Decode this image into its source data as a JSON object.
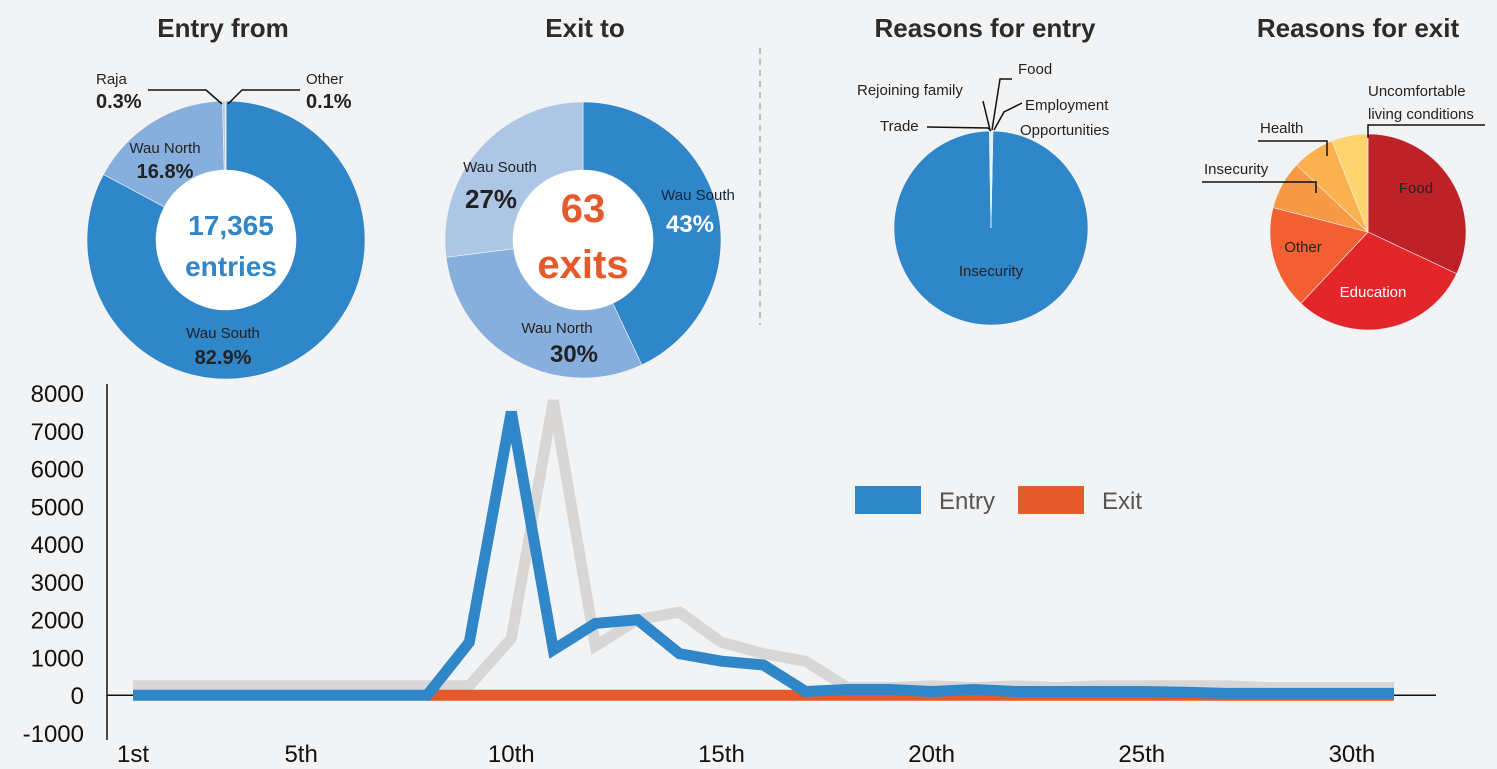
{
  "chart_data": [
    {
      "type": "pie",
      "variant": "donut",
      "title": "Entry from",
      "center_value": "17,365",
      "center_label": "entries",
      "slices": [
        {
          "label": "Wau South",
          "value": 82.9,
          "display": "82.9%",
          "color": "#2f86c9"
        },
        {
          "label": "Wau North",
          "value": 16.8,
          "display": "16.8%",
          "color": "#86afdd"
        },
        {
          "label": "Raja",
          "value": 0.3,
          "display": "0.3%",
          "color": "#b3c9e6"
        },
        {
          "label": "Other",
          "value": 0.1,
          "display": "0.1%",
          "color": "#d8e2ef"
        }
      ]
    },
    {
      "type": "pie",
      "variant": "donut",
      "title": "Exit to",
      "center_value": "63",
      "center_label": "exits",
      "center_color": "#e55a2b",
      "slices": [
        {
          "label": "Wau South",
          "value": 43,
          "display": "43%",
          "color": "#2f86c9"
        },
        {
          "label": "Wau North",
          "value": 30,
          "display": "30%",
          "color": "#86afdd"
        },
        {
          "label": "Wau South",
          "value": 27,
          "display": "27%",
          "color": "#aec6e5"
        }
      ]
    },
    {
      "type": "pie",
      "title": "Reasons for entry",
      "slices": [
        {
          "label": "Insecurity",
          "value": 99.4,
          "color": "#2f86c9"
        },
        {
          "label": "Rejoining family",
          "value": 0.15,
          "color": "#86afdd"
        },
        {
          "label": "Food",
          "value": 0.15,
          "color": "#a9c3e4"
        },
        {
          "label": "Employment Opportunities",
          "value": 0.15,
          "color": "#c5d6ec"
        },
        {
          "label": "Trade",
          "value": 0.15,
          "color": "#dde7f3"
        }
      ]
    },
    {
      "type": "pie",
      "title": "Reasons for exit",
      "slices": [
        {
          "label": "Food",
          "value": 32,
          "color": "#be2229"
        },
        {
          "label": "Education",
          "value": 30,
          "color": "#e3262a"
        },
        {
          "label": "Other",
          "value": 17,
          "color": "#f15f32"
        },
        {
          "label": "Insecurity",
          "value": 8,
          "color": "#f79a45"
        },
        {
          "label": "Health",
          "value": 7,
          "color": "#fbb24e"
        },
        {
          "label": "Uncomfortable living conditions",
          "value": 6,
          "color": "#fdd46e"
        }
      ]
    },
    {
      "type": "line",
      "xlabel": "",
      "ylabel": "",
      "x": [
        1,
        2,
        3,
        4,
        5,
        6,
        7,
        8,
        9,
        10,
        11,
        12,
        13,
        14,
        15,
        16,
        17,
        18,
        19,
        20,
        21,
        22,
        23,
        24,
        25,
        26,
        27,
        28,
        29,
        30,
        31
      ],
      "x_ticks": [
        {
          "x": 1,
          "label": "1st"
        },
        {
          "x": 5,
          "label": "5th"
        },
        {
          "x": 10,
          "label": "10th"
        },
        {
          "x": 15,
          "label": "15th"
        },
        {
          "x": 20,
          "label": "20th"
        },
        {
          "x": 25,
          "label": "25th"
        },
        {
          "x": 30,
          "label": "30th"
        }
      ],
      "y_ticks": [
        -1000,
        0,
        1000,
        2000,
        3000,
        4000,
        5000,
        6000,
        7000,
        8000
      ],
      "ylim": [
        -1000,
        8000
      ],
      "xlim": [
        1,
        32
      ],
      "legend_position": "center-right",
      "series": [
        {
          "name": "Entry",
          "color": "#2f86c9",
          "values": [
            0,
            0,
            0,
            0,
            0,
            0,
            0,
            0,
            1400,
            7500,
            1200,
            1900,
            2000,
            1100,
            900,
            800,
            100,
            150,
            150,
            100,
            150,
            100,
            100,
            100,
            100,
            80,
            50,
            50,
            50,
            50,
            50
          ]
        },
        {
          "name": "Exit",
          "color": "#e55a2b",
          "values": [
            0,
            0,
            0,
            0,
            0,
            0,
            0,
            0,
            0,
            0,
            0,
            0,
            0,
            0,
            0,
            0,
            0,
            0,
            0,
            0,
            0,
            0,
            0,
            0,
            0,
            0,
            0,
            0,
            0,
            0,
            0
          ]
        },
        {
          "color": "#d9d6d6",
          "values": [
            250,
            250,
            250,
            250,
            250,
            250,
            250,
            250,
            250,
            1500,
            7800,
            1300,
            2000,
            2200,
            1400,
            1100,
            900,
            200,
            200,
            250,
            200,
            250,
            200,
            250,
            250,
            250,
            250,
            200,
            200,
            200,
            200
          ]
        }
      ]
    }
  ]
}
